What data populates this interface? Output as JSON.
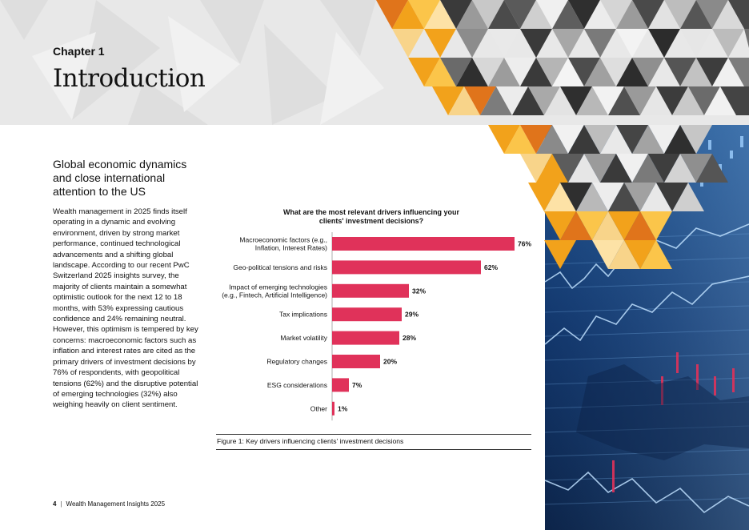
{
  "header": {
    "chapter_label": "Chapter 1",
    "chapter_title": "Introduction"
  },
  "section": {
    "heading": "Global economic dynamics and close international attention to the US",
    "body": "Wealth management in 2025 finds itself operating in a dynamic and evolving environment, driven by strong market performance, continued technological advancements and a shifting global landscape. According to our recent PwC Switzerland 2025 insights survey, the majority of clients maintain a somewhat optimistic outlook for the next 12 to 18 months, with 53% expressing cautious confidence and 24% remaining neutral. However, this optimism is tempered by key concerns: macroeconomic factors such as inflation and interest rates are cited as the primary drivers of investment decisions by 76% of respondents, with geopolitical tensions (62%) and the disruptive potential of emerging technologies (32%) also weighing heavily on client sentiment."
  },
  "chart_data": {
    "type": "bar",
    "orientation": "horizontal",
    "title": "What are the most relevant drivers influencing your clients' investment decisions?",
    "categories": [
      [
        "Macroeconomic factors (e.g.,",
        "Inflation, Interest Rates)"
      ],
      [
        "Geo-political tensions and risks"
      ],
      [
        "Impact of emerging technologies",
        "(e.g., Fintech, Artificial Intelligence)"
      ],
      [
        "Tax implications"
      ],
      [
        "Market volatility"
      ],
      [
        "Regulatory changes"
      ],
      [
        "ESG considerations"
      ],
      [
        "Other"
      ]
    ],
    "values": [
      76,
      62,
      32,
      29,
      28,
      20,
      7,
      1
    ],
    "value_labels": [
      "76%",
      "62%",
      "32%",
      "29%",
      "28%",
      "20%",
      "7%",
      "1%"
    ],
    "unit": "%",
    "xlim": [
      0,
      100
    ],
    "bar_color": "#e0325a",
    "caption": "Figure 1: Key drivers influencing clients' investment decisions"
  },
  "footer": {
    "page_number": "4",
    "separator": "|",
    "publication": "Wealth Management Insights 2025"
  },
  "colors": {
    "accent_orange": "#f2a21b",
    "accent_deep_orange": "#e0741b",
    "bar": "#e0325a",
    "image_blue": "#0b2a5a"
  }
}
